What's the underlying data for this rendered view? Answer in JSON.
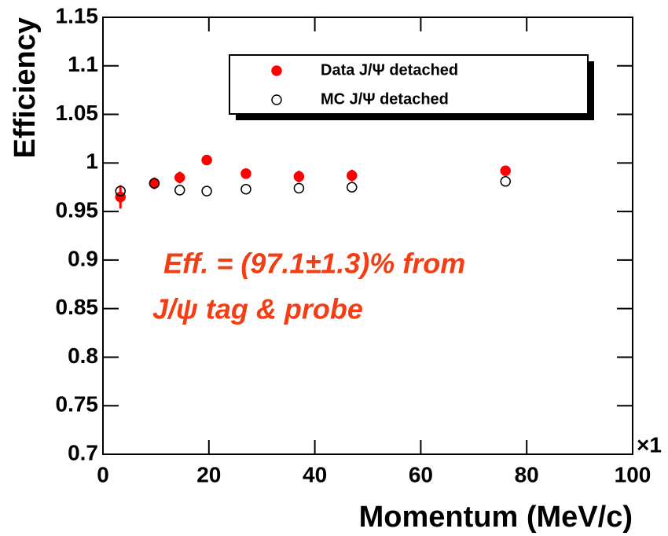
{
  "chart_data": {
    "type": "scatter",
    "xlabel": "Momentum (MeV/c)",
    "ylabel": "Efficiency",
    "x_multiplier": "×1",
    "xlim": [
      0,
      100
    ],
    "xticks": [
      0,
      20,
      40,
      60,
      80,
      100
    ],
    "ylim": [
      0.7,
      1.15
    ],
    "yticks": [
      0.7,
      0.75,
      0.8,
      0.85,
      0.9,
      0.95,
      1,
      1.05,
      1.1,
      1.15
    ],
    "legend_position": "top-right",
    "series": [
      {
        "name": "Data J/Ψ detached",
        "color": "#ff0000",
        "marker": "filled",
        "x": [
          3.3,
          9.7,
          14.5,
          19.6,
          27,
          37,
          47,
          76
        ],
        "values": [
          0.965,
          0.979,
          0.985,
          1.003,
          0.989,
          0.986,
          0.987,
          0.992
        ],
        "errors": [
          0.012,
          0.006,
          0.006,
          0.003,
          0.003,
          0.006,
          0.006,
          0.003
        ]
      },
      {
        "name": "MC J/Ψ detached",
        "color": "#000000",
        "marker": "open",
        "x": [
          3.3,
          9.7,
          14.5,
          19.6,
          27,
          37,
          47,
          76
        ],
        "values": [
          0.971,
          0.979,
          0.972,
          0.971,
          0.973,
          0.974,
          0.975,
          0.981
        ]
      }
    ],
    "annotations": [
      "Eff. = (97.1±1.3)%  from",
      "J/ψ tag & probe"
    ]
  }
}
